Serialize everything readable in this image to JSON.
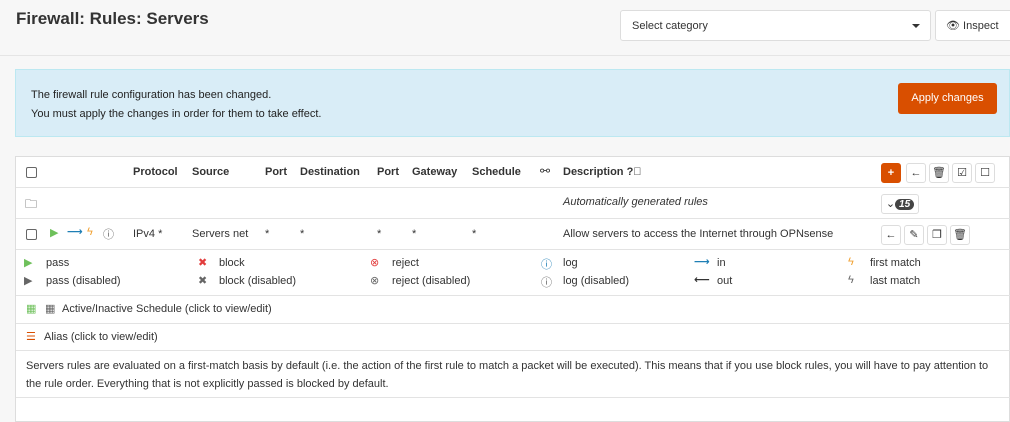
{
  "header": {
    "title": "Firewall: Rules: Servers",
    "category_placeholder": "Select category",
    "inspect_label": "Inspect"
  },
  "alert": {
    "line1": "The firewall rule configuration has been changed.",
    "line2": "You must apply the changes in order for them to take effect.",
    "apply_label": "Apply changes"
  },
  "table": {
    "columns": {
      "protocol": "Protocol",
      "source": "Source",
      "port": "Port",
      "destination": "Destination",
      "dport": "Port",
      "gateway": "Gateway",
      "schedule": "Schedule",
      "description": "Description"
    },
    "auto_row": {
      "description": "Automatically generated rules",
      "count": "15"
    },
    "rule": {
      "protocol": "IPv4 *",
      "source": "Servers net",
      "port": "*",
      "destination": "*",
      "dport": "*",
      "gateway": "*",
      "schedule": "*",
      "description": "Allow servers to access the Internet through OPNsense"
    }
  },
  "legend": {
    "pass": "pass",
    "pass_disabled": "pass (disabled)",
    "block": "block",
    "block_disabled": "block (disabled)",
    "reject": "reject",
    "reject_disabled": "reject (disabled)",
    "log": "log",
    "log_disabled": "log (disabled)",
    "in": "in",
    "out": "out",
    "first": "first match",
    "last": "last match"
  },
  "schedule_label": "Active/Inactive Schedule (click to view/edit)",
  "alias_label": "Alias (click to view/edit)",
  "note": "Servers rules are evaluated on a first-match basis by default (i.e. the action of the first rule to match a packet will be executed). This means that if you use block rules, you will have to pay attention to the rule order. Everything that is not explicitly passed is blocked by default.",
  "colors": {
    "accent": "#d94f00",
    "alert_bg": "#d9edf7"
  }
}
